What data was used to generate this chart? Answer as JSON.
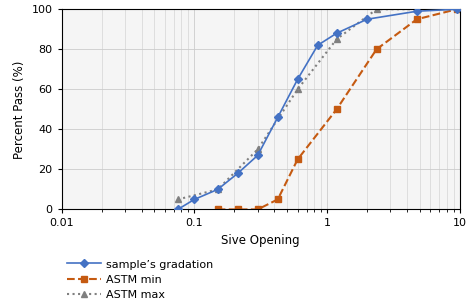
{
  "title": "",
  "xlabel": "Sive Opening",
  "ylabel": "Percent Pass (%)",
  "xlim": [
    0.01,
    10
  ],
  "ylim": [
    0,
    100
  ],
  "sample_x": [
    0.075,
    0.1,
    0.15,
    0.212,
    0.3,
    0.425,
    0.6,
    0.85,
    1.18,
    2.0,
    4.75,
    9.5
  ],
  "sample_y": [
    0,
    5,
    10,
    18,
    27,
    46,
    65,
    82,
    88,
    95,
    99,
    100
  ],
  "astm_min_x": [
    0.15,
    0.212,
    0.3,
    0.425,
    0.6,
    1.18,
    2.36,
    4.75,
    9.5
  ],
  "astm_min_y": [
    0,
    0,
    0,
    5,
    25,
    50,
    80,
    95,
    100
  ],
  "astm_max_x": [
    0.075,
    0.15,
    0.3,
    0.6,
    1.18,
    2.36,
    4.75
  ],
  "astm_max_y": [
    5,
    10,
    30,
    60,
    85,
    100,
    100
  ],
  "sample_color": "#4472C4",
  "astm_min_color": "#C55A11",
  "astm_max_color": "#808080",
  "legend_labels": [
    "sample’s gradation",
    "ASTM min",
    "ASTM max"
  ],
  "grid_color": "#CCCCCC",
  "bg_color": "#F5F5F5"
}
